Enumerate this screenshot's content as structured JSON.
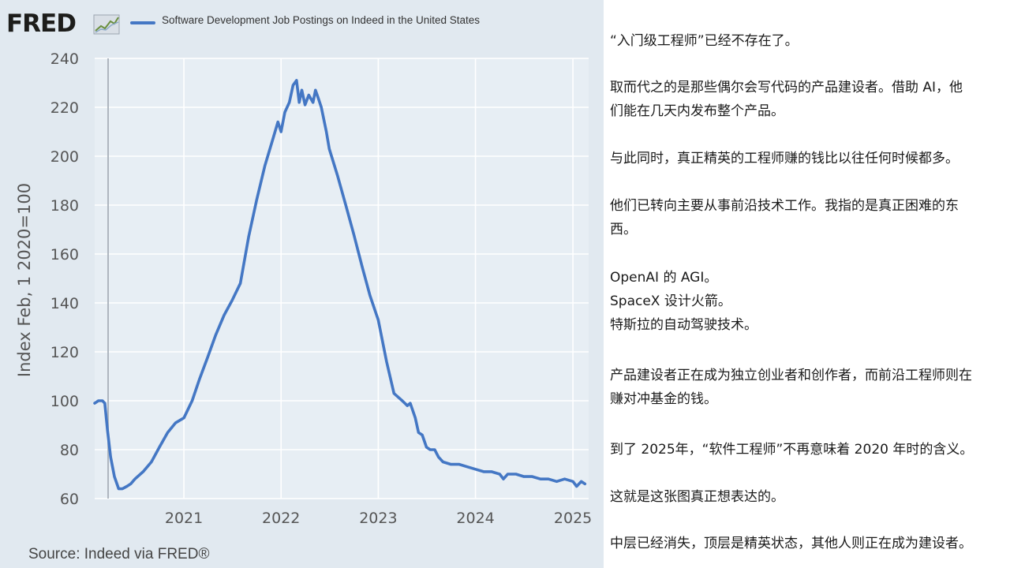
{
  "logo": {
    "text": "FRED"
  },
  "source": "Source: Indeed via FRED®",
  "colors": {
    "line": "#4477c4",
    "panel": "#e1e9f0",
    "grid": "#ffffff"
  },
  "chart_data": {
    "type": "line",
    "title": "Software Development Job Postings on Indeed in the United States",
    "xlabel": "",
    "ylabel": "Index Feb, 1 2020=100",
    "ylim": [
      60,
      240
    ],
    "yticks": [
      60,
      80,
      100,
      120,
      140,
      160,
      180,
      200,
      220,
      240
    ],
    "xlim": [
      "2020-02-01",
      "2025-03-01"
    ],
    "xticks": [
      "2021",
      "2022",
      "2023",
      "2024",
      "2025"
    ],
    "grid": true,
    "legend": "top",
    "series": [
      {
        "name": "Software Development Job Postings on Indeed in the United States",
        "color": "#4477c4",
        "points": [
          [
            "2020-02-01",
            99
          ],
          [
            "2020-02-15",
            100
          ],
          [
            "2020-03-01",
            100
          ],
          [
            "2020-03-10",
            99
          ],
          [
            "2020-03-20",
            88
          ],
          [
            "2020-04-01",
            77
          ],
          [
            "2020-04-15",
            69
          ],
          [
            "2020-05-01",
            64
          ],
          [
            "2020-05-15",
            64
          ],
          [
            "2020-06-01",
            65
          ],
          [
            "2020-06-15",
            66
          ],
          [
            "2020-07-01",
            68
          ],
          [
            "2020-08-01",
            71
          ],
          [
            "2020-09-01",
            75
          ],
          [
            "2020-10-01",
            81
          ],
          [
            "2020-11-01",
            87
          ],
          [
            "2020-12-01",
            91
          ],
          [
            "2021-01-01",
            93
          ],
          [
            "2021-02-01",
            100
          ],
          [
            "2021-03-01",
            109
          ],
          [
            "2021-04-01",
            118
          ],
          [
            "2021-05-01",
            127
          ],
          [
            "2021-06-01",
            135
          ],
          [
            "2021-07-01",
            141
          ],
          [
            "2021-08-01",
            148
          ],
          [
            "2021-09-01",
            167
          ],
          [
            "2021-10-01",
            182
          ],
          [
            "2021-11-01",
            196
          ],
          [
            "2021-12-01",
            207
          ],
          [
            "2021-12-20",
            214
          ],
          [
            "2022-01-01",
            210
          ],
          [
            "2022-01-15",
            218
          ],
          [
            "2022-02-01",
            222
          ],
          [
            "2022-02-15",
            229
          ],
          [
            "2022-02-28",
            231
          ],
          [
            "2022-03-10",
            222
          ],
          [
            "2022-03-20",
            227
          ],
          [
            "2022-04-01",
            221
          ],
          [
            "2022-04-15",
            225
          ],
          [
            "2022-05-01",
            222
          ],
          [
            "2022-05-10",
            227
          ],
          [
            "2022-05-20",
            224
          ],
          [
            "2022-06-01",
            220
          ],
          [
            "2022-06-20",
            210
          ],
          [
            "2022-07-01",
            203
          ],
          [
            "2022-08-01",
            192
          ],
          [
            "2022-09-01",
            180
          ],
          [
            "2022-10-01",
            168
          ],
          [
            "2022-11-01",
            155
          ],
          [
            "2022-12-01",
            143
          ],
          [
            "2023-01-01",
            133
          ],
          [
            "2023-02-01",
            116
          ],
          [
            "2023-03-01",
            103
          ],
          [
            "2023-04-01",
            100
          ],
          [
            "2023-04-20",
            98
          ],
          [
            "2023-05-01",
            99
          ],
          [
            "2023-05-20",
            93
          ],
          [
            "2023-06-01",
            87
          ],
          [
            "2023-06-15",
            86
          ],
          [
            "2023-07-01",
            81
          ],
          [
            "2023-07-15",
            80
          ],
          [
            "2023-08-01",
            80
          ],
          [
            "2023-08-15",
            77
          ],
          [
            "2023-09-01",
            75
          ],
          [
            "2023-10-01",
            74
          ],
          [
            "2023-11-01",
            74
          ],
          [
            "2023-12-01",
            73
          ],
          [
            "2024-01-01",
            72
          ],
          [
            "2024-02-01",
            71
          ],
          [
            "2024-03-01",
            71
          ],
          [
            "2024-04-01",
            70
          ],
          [
            "2024-04-15",
            68
          ],
          [
            "2024-05-01",
            70
          ],
          [
            "2024-06-01",
            70
          ],
          [
            "2024-07-01",
            69
          ],
          [
            "2024-08-01",
            69
          ],
          [
            "2024-09-01",
            68
          ],
          [
            "2024-10-01",
            68
          ],
          [
            "2024-11-01",
            67
          ],
          [
            "2024-12-01",
            68
          ],
          [
            "2025-01-01",
            67
          ],
          [
            "2025-01-15",
            65
          ],
          [
            "2025-02-01",
            67
          ],
          [
            "2025-02-15",
            66
          ]
        ]
      }
    ]
  },
  "paragraphs": [
    [
      "“入门级工程师”已经不存在了。"
    ],
    [
      "取而代之的是那些偶尔会写代码的产品建设者。借助 AI，他",
      "们能在几天内发布整个产品。"
    ],
    [
      "与此同时，真正精英的工程师赚的钱比以往任何时候都多。"
    ],
    [
      "他们已转向主要从事前沿技术工作。我指的是真正困难的东",
      "西。"
    ],
    [
      "OpenAI 的 AGI。",
      "SpaceX 设计火箭。",
      "特斯拉的自动驾驶技术。"
    ],
    [
      "产品建设者正在成为独立创业者和创作者，而前沿工程师则在",
      "赚对冲基金的钱。"
    ],
    [
      "到了 2025年，“软件工程师”不再意味着 2020 年时的含义。"
    ],
    [
      "这就是这张图真正想表达的。"
    ],
    [
      "中层已经消失，顶层是精英状态，其他人则正在成为建设者。"
    ]
  ]
}
